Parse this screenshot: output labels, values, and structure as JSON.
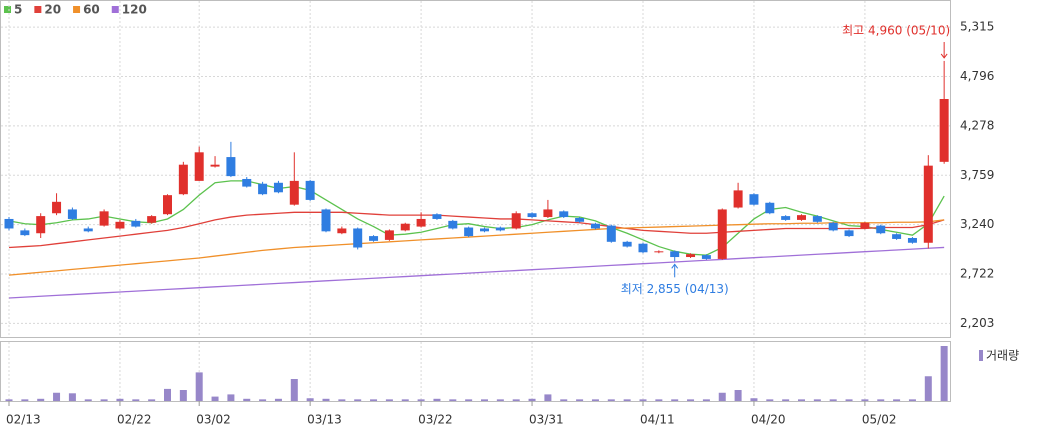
{
  "chart_data": {
    "type": "candlestick",
    "categories": [
      "02/13",
      null,
      null,
      null,
      null,
      null,
      null,
      "02/22",
      null,
      null,
      null,
      null,
      "03/02",
      null,
      null,
      null,
      null,
      null,
      null,
      "03/13",
      null,
      null,
      null,
      null,
      null,
      null,
      "03/22",
      null,
      null,
      null,
      null,
      null,
      null,
      "03/31",
      null,
      null,
      null,
      null,
      null,
      null,
      "04/11",
      null,
      null,
      null,
      null,
      null,
      null,
      "04/20",
      null,
      null,
      null,
      null,
      null,
      null,
      "05/02",
      null,
      null,
      null,
      null,
      null
    ],
    "open": [
      3300,
      3180,
      3150,
      3360,
      3400,
      3200,
      3230,
      3200,
      3280,
      3260,
      3350,
      3560,
      3700,
      3850,
      3950,
      3720,
      3670,
      3680,
      3450,
      3700,
      3400,
      3150,
      3200,
      3120,
      3080,
      3180,
      3220,
      3350,
      3280,
      3210,
      3200,
      3210,
      3200,
      3360,
      3320,
      3380,
      3310,
      3250,
      3230,
      3060,
      3040,
      2950,
      2960,
      2900,
      2920,
      2880,
      3420,
      3560,
      3470,
      3330,
      3290,
      3330,
      3260,
      3180,
      3200,
      3230,
      3140,
      3100,
      3050,
      3900
    ],
    "high": [
      3320,
      3200,
      3360,
      3570,
      3420,
      3220,
      3400,
      3290,
      3300,
      3340,
      3560,
      3900,
      4060,
      3960,
      4110,
      3740,
      3690,
      3700,
      4000,
      3710,
      3410,
      3220,
      3210,
      3130,
      3190,
      3260,
      3370,
      3360,
      3290,
      3220,
      3210,
      3220,
      3380,
      3370,
      3500,
      3390,
      3320,
      3260,
      3240,
      3070,
      3050,
      2970,
      2970,
      2940,
      2930,
      3410,
      3680,
      3570,
      3480,
      3340,
      3350,
      3340,
      3270,
      3190,
      3270,
      3240,
      3150,
      3110,
      3970,
      4960
    ],
    "low": [
      3180,
      3120,
      3100,
      3340,
      3290,
      3160,
      3220,
      3190,
      3210,
      3250,
      3340,
      3550,
      3700,
      3840,
      3740,
      3630,
      3550,
      3570,
      3440,
      3490,
      3160,
      3140,
      2980,
      3060,
      3070,
      3170,
      3210,
      3290,
      3190,
      3110,
      3160,
      3170,
      3190,
      3310,
      3310,
      3310,
      3260,
      3190,
      3050,
      3000,
      2940,
      2940,
      2855,
      2890,
      2870,
      2870,
      3410,
      3440,
      3350,
      3280,
      3280,
      3260,
      3170,
      3110,
      3190,
      3140,
      3080,
      3040,
      2990,
      3880
    ],
    "close": [
      3200,
      3130,
      3330,
      3480,
      3300,
      3170,
      3380,
      3270,
      3220,
      3330,
      3550,
      3870,
      4000,
      3870,
      3750,
      3640,
      3560,
      3580,
      3700,
      3500,
      3170,
      3200,
      3000,
      3070,
      3180,
      3250,
      3300,
      3300,
      3200,
      3120,
      3170,
      3180,
      3360,
      3320,
      3400,
      3320,
      3270,
      3200,
      3060,
      3010,
      2950,
      2960,
      2900,
      2930,
      2880,
      3400,
      3600,
      3450,
      3360,
      3290,
      3340,
      3270,
      3180,
      3120,
      3260,
      3150,
      3090,
      3050,
      3860,
      4560
    ],
    "up_color": "#e0302c",
    "down_color": "#2f7de1",
    "series": [
      {
        "name": "5",
        "color": "#5cc24e",
        "values": [
          3280,
          3250,
          3240,
          3260,
          3290,
          3300,
          3330,
          3300,
          3270,
          3260,
          3300,
          3400,
          3550,
          3680,
          3700,
          3700,
          3660,
          3620,
          3640,
          3600,
          3500,
          3400,
          3300,
          3220,
          3130,
          3140,
          3160,
          3200,
          3240,
          3250,
          3220,
          3200,
          3210,
          3240,
          3290,
          3330,
          3320,
          3280,
          3210,
          3150,
          3080,
          3010,
          2960,
          2930,
          2920,
          3000,
          3150,
          3300,
          3400,
          3420,
          3370,
          3330,
          3280,
          3230,
          3220,
          3190,
          3160,
          3130,
          3250,
          3540
        ]
      },
      {
        "name": "20",
        "color": "#e0403a",
        "values": [
          3000,
          3010,
          3020,
          3040,
          3060,
          3080,
          3100,
          3120,
          3140,
          3160,
          3180,
          3210,
          3250,
          3290,
          3320,
          3340,
          3350,
          3360,
          3370,
          3370,
          3370,
          3370,
          3360,
          3350,
          3340,
          3340,
          3340,
          3340,
          3330,
          3320,
          3310,
          3300,
          3300,
          3290,
          3280,
          3270,
          3260,
          3240,
          3220,
          3200,
          3180,
          3170,
          3160,
          3150,
          3150,
          3160,
          3170,
          3180,
          3190,
          3200,
          3200,
          3200,
          3200,
          3200,
          3200,
          3210,
          3210,
          3210,
          3240,
          3290
        ]
      },
      {
        "name": "60",
        "color": "#f0902a",
        "values": [
          2710,
          2725,
          2740,
          2755,
          2770,
          2785,
          2800,
          2815,
          2830,
          2845,
          2860,
          2875,
          2890,
          2910,
          2930,
          2950,
          2970,
          2985,
          3000,
          3010,
          3020,
          3030,
          3040,
          3050,
          3060,
          3070,
          3080,
          3090,
          3100,
          3110,
          3120,
          3130,
          3140,
          3150,
          3160,
          3170,
          3180,
          3190,
          3200,
          3205,
          3210,
          3215,
          3220,
          3225,
          3230,
          3235,
          3240,
          3245,
          3250,
          3250,
          3255,
          3255,
          3260,
          3260,
          3260,
          3260,
          3265,
          3265,
          3270,
          3290
        ]
      },
      {
        "name": "120",
        "color": "#a070d8",
        "values": [
          2470,
          2479,
          2488,
          2497,
          2506,
          2515,
          2524,
          2533,
          2542,
          2551,
          2560,
          2569,
          2578,
          2587,
          2596,
          2605,
          2614,
          2623,
          2632,
          2641,
          2650,
          2659,
          2668,
          2677,
          2686,
          2695,
          2704,
          2713,
          2722,
          2731,
          2740,
          2749,
          2758,
          2767,
          2776,
          2785,
          2794,
          2803,
          2812,
          2821,
          2830,
          2839,
          2848,
          2857,
          2866,
          2875,
          2884,
          2893,
          2902,
          2911,
          2920,
          2929,
          2938,
          2947,
          2956,
          2965,
          2974,
          2983,
          2992,
          3001
        ]
      }
    ],
    "ylim": [
      2060,
      5600
    ],
    "yticks": [
      {
        "value": 2203,
        "label": "2,203"
      },
      {
        "value": 2722,
        "label": "2,722"
      },
      {
        "value": 3240,
        "label": "3,240"
      },
      {
        "value": 3759,
        "label": "3,759"
      },
      {
        "value": 4278,
        "label": "4,278"
      },
      {
        "value": 4796,
        "label": "4,796"
      },
      {
        "value": 5315,
        "label": "5,315"
      }
    ],
    "grid": true,
    "annotations": {
      "high": "최고 4,960 (05/10)",
      "low": "최저 2,855 (04/13)"
    },
    "volume": {
      "name": "거래량",
      "color": "#9787c9",
      "ylim": [
        0,
        100
      ],
      "values": [
        3,
        3,
        4,
        15,
        14,
        3,
        3,
        4,
        3,
        3,
        22,
        20,
        52,
        8,
        12,
        4,
        3,
        4,
        40,
        5,
        4,
        3,
        3,
        3,
        3,
        3,
        3,
        4,
        3,
        3,
        3,
        3,
        3,
        4,
        12,
        3,
        3,
        3,
        3,
        3,
        3,
        3,
        3,
        3,
        3,
        15,
        20,
        5,
        3,
        3,
        3,
        3,
        3,
        3,
        3,
        3,
        3,
        3,
        45,
        100
      ]
    }
  }
}
